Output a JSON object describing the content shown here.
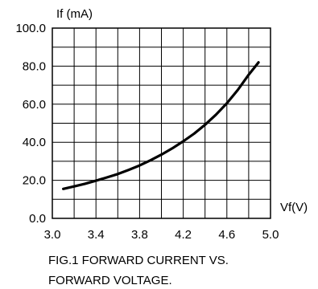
{
  "chart_data": {
    "type": "line",
    "title": "",
    "xlabel": "Vf(V)",
    "ylabel": "If (mA)",
    "xlim": [
      3.0,
      5.0
    ],
    "ylim": [
      0.0,
      100.0
    ],
    "grid": true,
    "x_ticks": [
      3.0,
      3.2,
      3.4,
      3.6,
      3.8,
      4.0,
      4.2,
      4.4,
      4.6,
      4.8,
      5.0
    ],
    "x_tick_labels": [
      "3.0",
      "3.4",
      "3.8",
      "4.2",
      "4.6",
      "5.0"
    ],
    "y_ticks": [
      0,
      10,
      20,
      30,
      40,
      50,
      60,
      70,
      80,
      90,
      100
    ],
    "y_tick_labels": [
      "0.0",
      "20.0",
      "40.0",
      "60.0",
      "80.0",
      "100.0"
    ],
    "series": [
      {
        "x": [
          3.1,
          3.2,
          3.3,
          3.4,
          3.5,
          3.6,
          3.7,
          3.8,
          3.9,
          4.0,
          4.1,
          4.2,
          4.3,
          4.4,
          4.5,
          4.6,
          4.7,
          4.8,
          4.89
        ],
        "y": [
          15.5,
          16.8,
          18.2,
          19.8,
          21.5,
          23.3,
          25.5,
          27.8,
          30.5,
          33.5,
          36.8,
          40.5,
          44.5,
          49.2,
          54.5,
          60.5,
          67.5,
          75.5,
          82.0
        ],
        "color": "#000000"
      }
    ],
    "caption_lines": [
      "FIG.1 FORWARD CURRENT VS.",
      "FORWARD VOLTAGE."
    ]
  }
}
